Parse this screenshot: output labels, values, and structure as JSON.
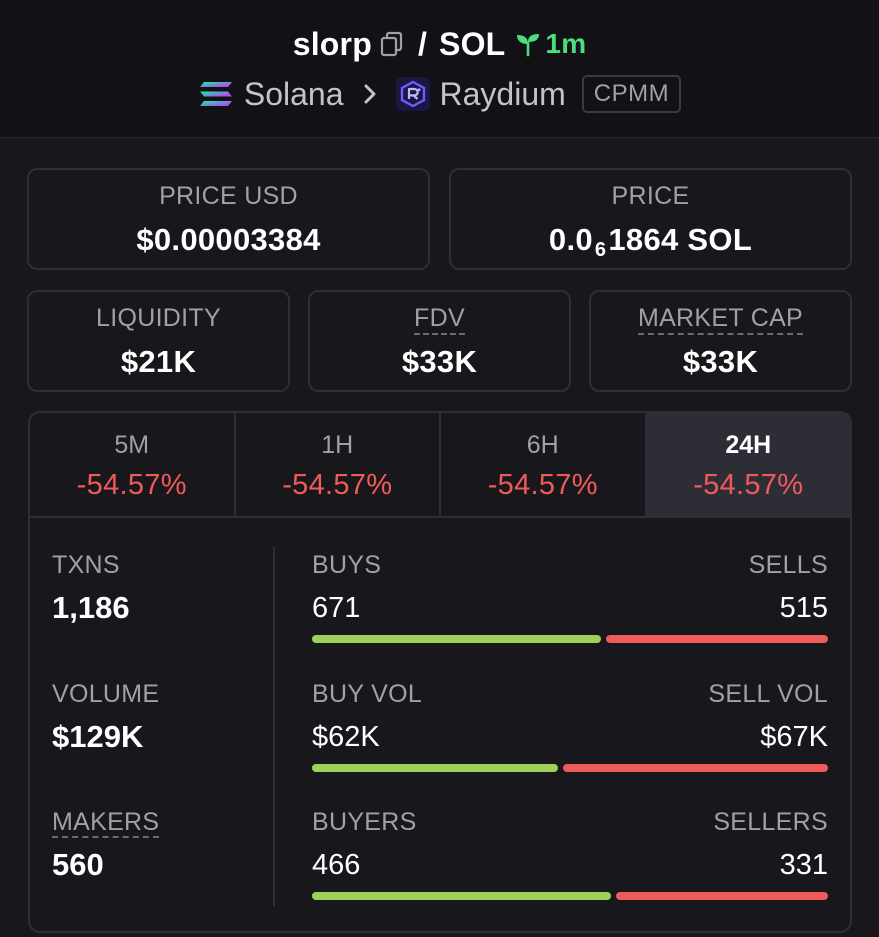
{
  "header": {
    "token": "slorp",
    "slash": "/",
    "quote": "SOL",
    "age": "1m",
    "chain": "Solana",
    "dex": "Raydium",
    "pool_type": "CPMM"
  },
  "cards": {
    "price_usd": {
      "label": "PRICE USD",
      "value": "$0.00003384"
    },
    "price": {
      "label": "PRICE",
      "value_prefix": "0.0",
      "value_sub": "6",
      "value_suffix": "1864 SOL"
    },
    "liquidity": {
      "label": "LIQUIDITY",
      "value": "$21K"
    },
    "fdv": {
      "label": "FDV",
      "value": "$33K"
    },
    "market_cap": {
      "label": "MARKET CAP",
      "value": "$33K"
    }
  },
  "tabs": [
    {
      "label": "5M",
      "change": "-54.57%"
    },
    {
      "label": "1H",
      "change": "-54.57%"
    },
    {
      "label": "6H",
      "change": "-54.57%"
    },
    {
      "label": "24H",
      "change": "-54.57%",
      "active": true
    }
  ],
  "metrics": {
    "txns": {
      "label": "TXNS",
      "value": "1,186"
    },
    "volume": {
      "label": "VOLUME",
      "value": "$129K"
    },
    "makers": {
      "label": "MAKERS",
      "value": "560"
    }
  },
  "splits": {
    "txns": {
      "buy_label": "BUYS",
      "sell_label": "SELLS",
      "buy_value": "671",
      "sell_value": "515",
      "buy_ratio": 0.5658
    },
    "volume": {
      "buy_label": "BUY VOL",
      "sell_label": "SELL VOL",
      "buy_value": "$62K",
      "sell_value": "$67K",
      "buy_ratio": 0.4806
    },
    "makers": {
      "buy_label": "BUYERS",
      "sell_label": "SELLERS",
      "buy_value": "466",
      "sell_value": "331",
      "buy_ratio": 0.5847
    }
  },
  "colors": {
    "buy": "#9ed15a",
    "sell": "#ef5a5a",
    "age": "#4ade80"
  }
}
